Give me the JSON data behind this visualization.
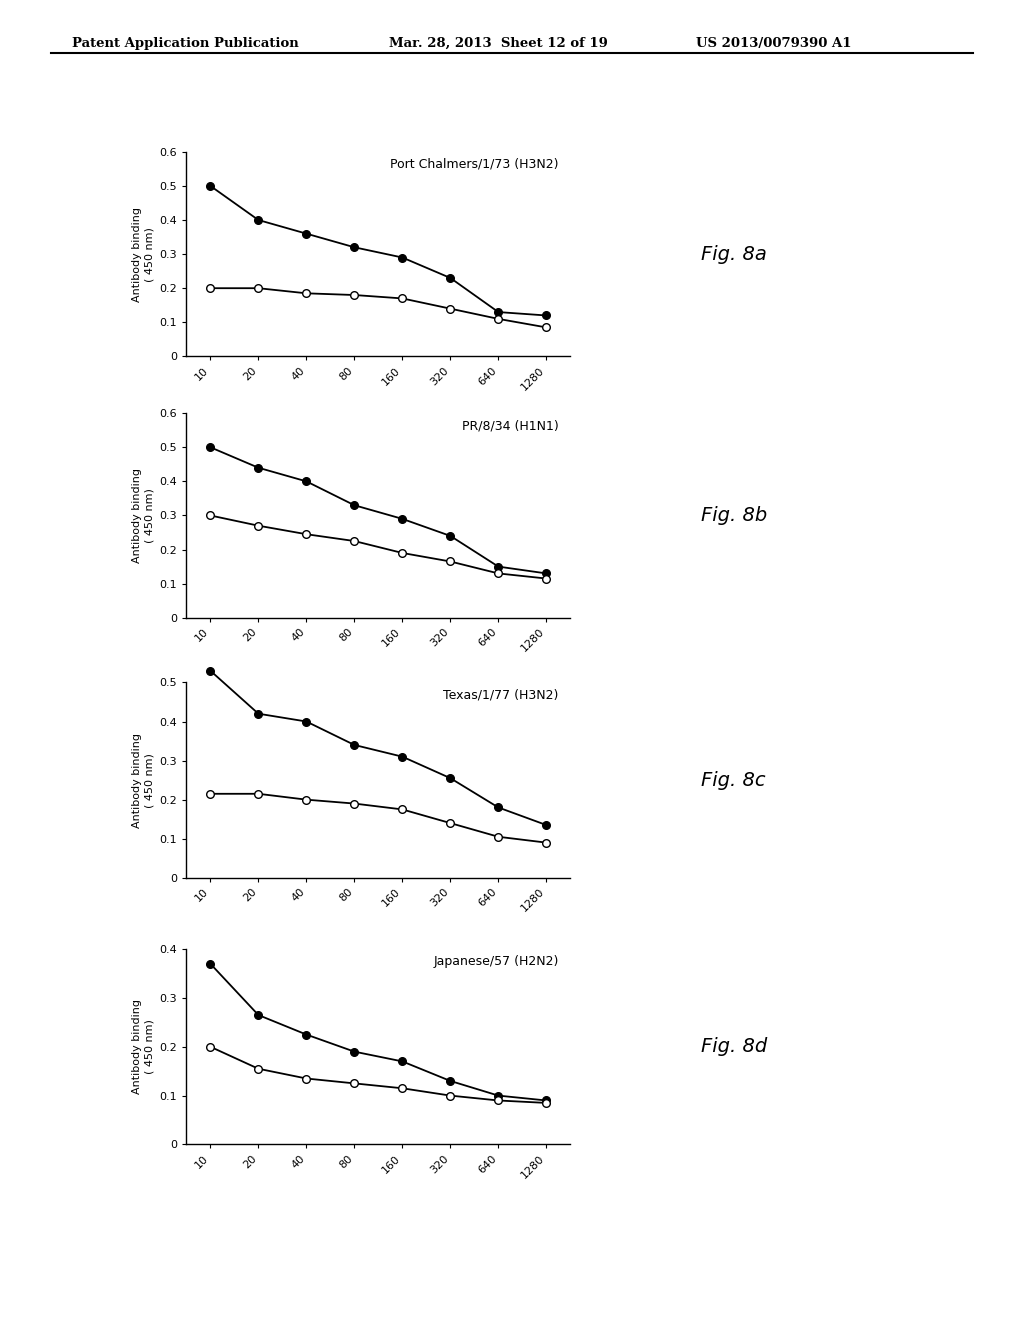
{
  "x_labels": [
    "10",
    "20",
    "40",
    "80",
    "160",
    "320",
    "640",
    "1280"
  ],
  "x_positions": [
    1,
    2,
    3,
    4,
    5,
    6,
    7,
    8
  ],
  "panels": [
    {
      "title": "Port Chalmers/1/73 (H3N2)",
      "fig_label": "Fig. 8a",
      "ylim": [
        0,
        0.6
      ],
      "yticks": [
        0,
        0.1,
        0.2,
        0.3,
        0.4,
        0.5,
        0.6
      ],
      "filled": [
        0.5,
        0.4,
        0.36,
        0.32,
        0.29,
        0.23,
        0.13,
        0.12
      ],
      "open": [
        0.2,
        0.2,
        0.185,
        0.18,
        0.17,
        0.14,
        0.11,
        0.085
      ]
    },
    {
      "title": "PR/8/34 (H1N1)",
      "fig_label": "Fig. 8b",
      "ylim": [
        0,
        0.6
      ],
      "yticks": [
        0,
        0.1,
        0.2,
        0.3,
        0.4,
        0.5,
        0.6
      ],
      "filled": [
        0.5,
        0.44,
        0.4,
        0.33,
        0.29,
        0.24,
        0.15,
        0.13
      ],
      "open": [
        0.3,
        0.27,
        0.245,
        0.225,
        0.19,
        0.165,
        0.13,
        0.115
      ]
    },
    {
      "title": "Texas/1/77 (H3N2)",
      "fig_label": "Fig. 8c",
      "ylim": [
        0,
        0.5
      ],
      "yticks": [
        0,
        0.1,
        0.2,
        0.3,
        0.4,
        0.5
      ],
      "filled": [
        0.53,
        0.42,
        0.4,
        0.34,
        0.31,
        0.255,
        0.18,
        0.135
      ],
      "open": [
        0.215,
        0.215,
        0.2,
        0.19,
        0.175,
        0.14,
        0.105,
        0.09
      ]
    },
    {
      "title": "Japanese/57 (H2N2)",
      "fig_label": "Fig. 8d",
      "ylim": [
        0,
        0.4
      ],
      "yticks": [
        0,
        0.1,
        0.2,
        0.3,
        0.4
      ],
      "filled": [
        0.37,
        0.265,
        0.225,
        0.19,
        0.17,
        0.13,
        0.1,
        0.09
      ],
      "open": [
        0.2,
        0.155,
        0.135,
        0.125,
        0.115,
        0.1,
        0.09,
        0.085
      ]
    }
  ],
  "ylabel_line1": "Antibody binding",
  "ylabel_line2": "( 450 nm)",
  "background_color": "#ffffff",
  "header_left": "Patent Application Publication",
  "header_mid": "Mar. 28, 2013  Sheet 12 of 19",
  "header_right": "US 2013/0079390 A1"
}
